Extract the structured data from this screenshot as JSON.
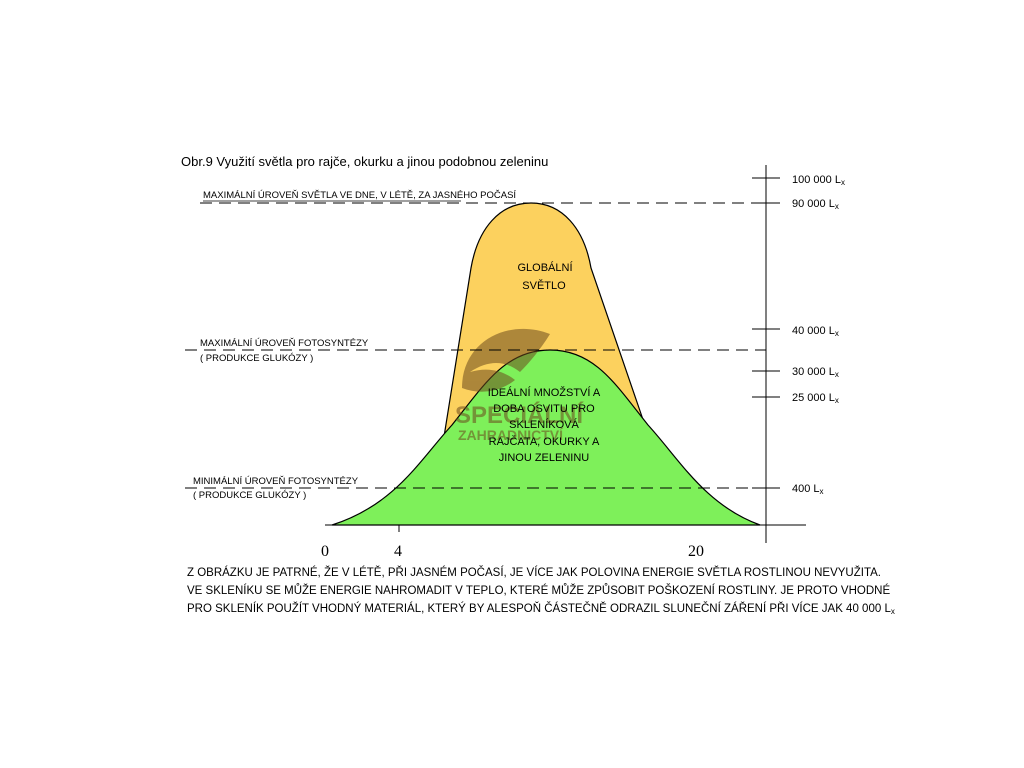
{
  "title": "Obr.9 Využití světla pro rajče, okurku a jinou podobnou zeleninu",
  "levels": {
    "max_day": "MAXIMÁLNÍ ÚROVEŇ  SVĚTLA VE DNE, V LÉTĚ, ZA JASNÉHO POČASÍ",
    "max_photo_line1": "MAXIMÁLNÍ ÚROVEŇ FOTOSYNTÉZY",
    "max_photo_line2": "( PRODUKCE GLUKÓZY )",
    "min_photo_line1": "MINIMÁLNÍ ÚROVEŇ FOTOSYNTÉZY",
    "min_photo_line2": "( PRODUKCE GLUKÓZY )"
  },
  "areas": {
    "global_line1": "GLOBÁLNÍ",
    "global_line2": "SVĚTLO",
    "ideal_lines": [
      "IDEÁLNÍ MNOŽSTVÍ A",
      "DOBA OSVITU PRO",
      "SKLENÍKOVÁ",
      "RAJČATA, OKURKY A",
      "JINOU  ZELENINU"
    ]
  },
  "scale": {
    "unit_main": "L",
    "unit_sub": "x",
    "ticks": [
      "100 000",
      "90 000",
      "40 000",
      "30 000",
      "25 000",
      "400"
    ]
  },
  "x_axis": {
    "ticks": [
      "0",
      "4",
      "20"
    ]
  },
  "watermark": {
    "line1": "SPECIÁLNÍ",
    "line2": "ZAHRADNICTVÍ"
  },
  "caption": [
    "Z OBRÁZKU JE PATRNÉ, ŽE V LÉTĚ, PŘI JASNÉM POČASÍ, JE VÍCE JAK POLOVINA ENERGIE SVĚTLA ROSTLINOU NEVYUŽITA.",
    "VE SKLENÍKU SE MŮŽE ENERGIE NAHROMADIT V TEPLO, KTERÉ MŮŽE ZPŮSOBIT POŠKOZENÍ ROSTLINY. JE PROTO VHODNÉ",
    "PRO SKLENÍK POUŽÍT VHODNÝ MATERIÁL, KTERÝ BY ALESPOŇ ČÁSTEČNĚ ODRAZIL SLUNEČNÍ ZÁŘENÍ PŘI VÍCE JAK 40 000"
  ],
  "caption_unit": "L",
  "caption_unit_sub": "x",
  "colors": {
    "global_fill": "#fcd15e",
    "ideal_fill": "#7ef05a",
    "watermark": "#6b4a1e"
  }
}
